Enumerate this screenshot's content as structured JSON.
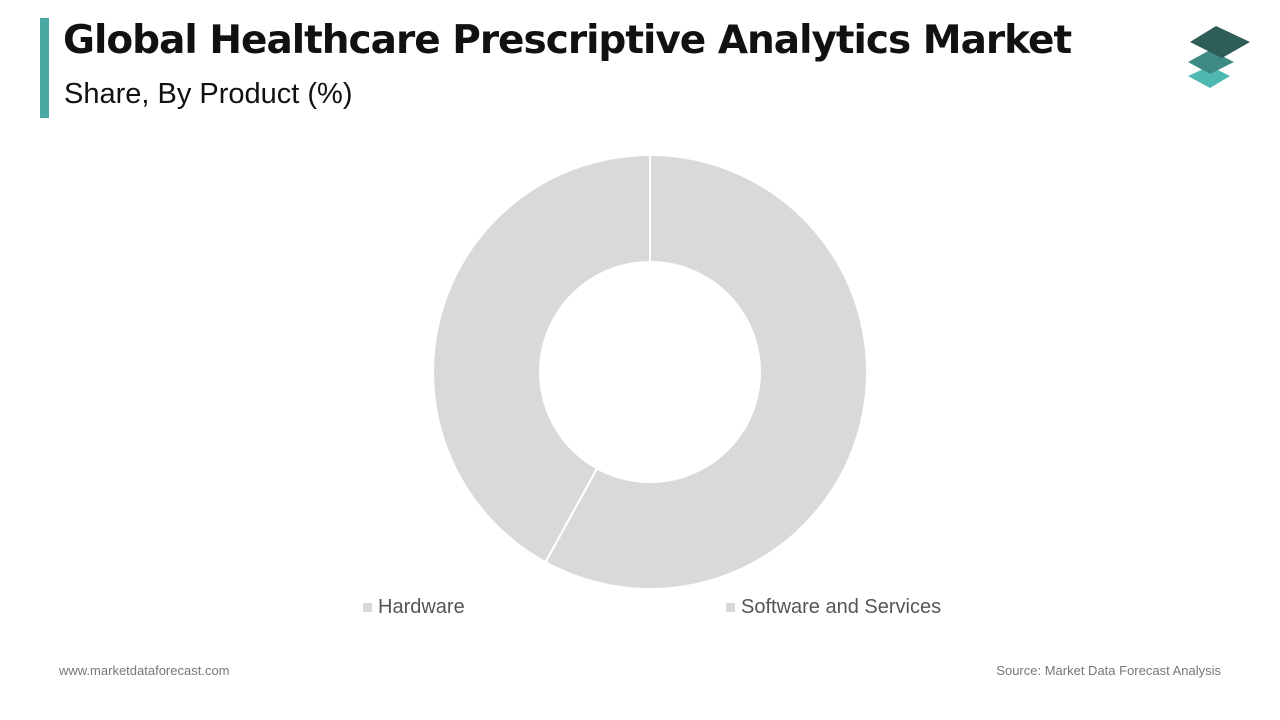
{
  "header": {
    "title": "Global Healthcare Prescriptive Analytics Market",
    "subtitle": "Share, By Product (%)",
    "accent_color": "#4aa8a3"
  },
  "logo": {
    "icon": "stacked-layers-icon",
    "colors": [
      "#2f5d57",
      "#3e8b84",
      "#4fb8b0"
    ]
  },
  "chart_data": {
    "type": "pie",
    "variant": "donut",
    "title": "Share, By Product (%)",
    "categories": [
      "Hardware",
      "Software and Services"
    ],
    "values": [
      42,
      58
    ],
    "colors": [
      "#d9d9d9",
      "#d9d9d9"
    ],
    "legend_position": "bottom",
    "data_labels_shown": false
  },
  "footer": {
    "website": "www.marketdataforecast.com",
    "source": "Source: Market Data Forecast Analysis"
  }
}
